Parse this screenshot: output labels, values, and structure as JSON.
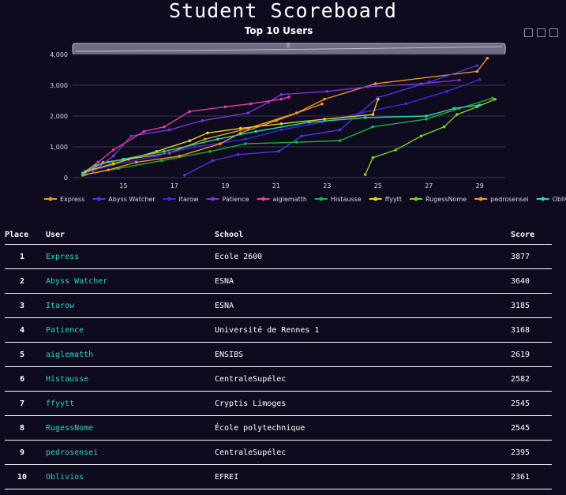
{
  "page": {
    "title": "Student Scoreboard"
  },
  "chart_data": {
    "type": "line",
    "title": "Top 10 Users",
    "xlabel": "",
    "ylabel": "",
    "xlim": [
      13.0,
      30.0
    ],
    "ylim": [
      0,
      4000
    ],
    "x_ticks": [
      15,
      17,
      19,
      21,
      23,
      25,
      27,
      29
    ],
    "y_ticks": [
      0,
      1000,
      2000,
      3000,
      4000
    ],
    "y_tick_labels": [
      "0",
      "1,000",
      "2,000",
      "3,000",
      "4,000"
    ],
    "grid": "horizontal",
    "legend": "bottom",
    "series": [
      {
        "name": "Express",
        "color": "#f0962a",
        "x": [
          13.4,
          14.2,
          15.2,
          16.8,
          18.2,
          19.9,
          21.8,
          22.9,
          24.9,
          28.9,
          29.3
        ],
        "y": [
          100,
          500,
          600,
          800,
          1250,
          1600,
          2100,
          2550,
          3050,
          3450,
          3877
        ]
      },
      {
        "name": "Abyss Watcher",
        "color": "#4a34e8",
        "x": [
          17.4,
          18.5,
          19.5,
          21.1,
          22.0,
          23.5,
          25.0,
          27.0,
          28.9
        ],
        "y": [
          80,
          550,
          750,
          850,
          1350,
          1550,
          2600,
          3100,
          3640
        ]
      },
      {
        "name": "Itarow",
        "color": "#3b2ae0",
        "x": [
          13.5,
          14.5,
          16.3,
          17.8,
          19.8,
          21.2,
          22.8,
          24.3,
          26.1,
          27.7,
          29.0
        ],
        "y": [
          150,
          400,
          700,
          1000,
          1250,
          1550,
          1800,
          2100,
          2400,
          2800,
          3185
        ]
      },
      {
        "name": "Patience",
        "color": "#7a35d9",
        "x": [
          13.8,
          14.6,
          15.3,
          16.8,
          18.1,
          19.9,
          20.7,
          21.2,
          23.0,
          24.6,
          26.7,
          28.2
        ],
        "y": [
          200,
          700,
          1350,
          1550,
          1850,
          2100,
          2450,
          2700,
          2800,
          2950,
          3050,
          3168
        ]
      },
      {
        "name": "aiglematth",
        "color": "#e63ca8",
        "x": [
          13.4,
          14.0,
          14.6,
          15.8,
          16.6,
          17.6,
          19.0,
          20.0,
          21.2,
          21.5
        ],
        "y": [
          150,
          500,
          900,
          1500,
          1650,
          2150,
          2300,
          2400,
          2550,
          2619
        ]
      },
      {
        "name": "Histausse",
        "color": "#22b034",
        "x": [
          13.5,
          14.8,
          16.5,
          18.4,
          19.8,
          21.8,
          23.5,
          24.8,
          26.9,
          28.2,
          29.5
        ],
        "y": [
          100,
          300,
          550,
          850,
          1100,
          1150,
          1200,
          1650,
          1900,
          2250,
          2582
        ]
      },
      {
        "name": "ffyytt",
        "color": "#e8d022",
        "x": [
          13.5,
          14.6,
          16.3,
          17.6,
          18.3,
          19.6,
          21.2,
          22.9,
          24.8,
          25.0
        ],
        "y": [
          200,
          450,
          850,
          1200,
          1450,
          1600,
          1750,
          1900,
          2050,
          2545
        ]
      },
      {
        "name": "RugessNome",
        "color": "#7ad022",
        "x": [
          24.5,
          24.8,
          25.7,
          26.7,
          27.6,
          28.1,
          28.9,
          29.6
        ],
        "y": [
          100,
          650,
          900,
          1350,
          1650,
          2050,
          2300,
          2545
        ]
      },
      {
        "name": "pedrosensei",
        "color": "#f0962a",
        "x": [
          13.4,
          14.4,
          15.5,
          17.2,
          18.8,
          19.6,
          21.0,
          22.8
        ],
        "y": [
          80,
          250,
          500,
          700,
          1100,
          1450,
          1850,
          2395
        ]
      },
      {
        "name": "Oblivios",
        "color": "#28d6b0",
        "x": [
          13.4,
          13.9,
          15.0,
          16.6,
          18.7,
          20.2,
          22.3,
          24.5,
          26.9,
          28.0,
          29.0
        ],
        "y": [
          150,
          400,
          600,
          850,
          1250,
          1500,
          1800,
          1950,
          2000,
          2250,
          2361
        ]
      }
    ]
  },
  "toolbar": {
    "icons": [
      "zoom-icon",
      "autoscale-icon",
      "download-icon"
    ]
  },
  "table": {
    "headers": {
      "place": "Place",
      "user": "User",
      "school": "School",
      "score": "Score"
    },
    "rows": [
      {
        "place": "1",
        "user": "Express",
        "school": "Ecole 2600",
        "score": "3877"
      },
      {
        "place": "2",
        "user": "Abyss Watcher",
        "school": "ESNA",
        "score": "3640"
      },
      {
        "place": "3",
        "user": "Itarow",
        "school": "ESNA",
        "score": "3185"
      },
      {
        "place": "4",
        "user": "Patience",
        "school": "Université de Rennes 1",
        "score": "3168"
      },
      {
        "place": "5",
        "user": "aiglematth",
        "school": "ENSIBS",
        "score": "2619"
      },
      {
        "place": "6",
        "user": "Histausse",
        "school": "CentraleSupélec",
        "score": "2582"
      },
      {
        "place": "7",
        "user": "ffyytt",
        "school": "Cryptis Limoges",
        "score": "2545"
      },
      {
        "place": "8",
        "user": "RugessNome",
        "school": "École polytechnique",
        "score": "2545"
      },
      {
        "place": "9",
        "user": "pedrosensei",
        "school": "CentraleSupélec",
        "score": "2395"
      },
      {
        "place": "10",
        "user": "Oblivios",
        "school": "EFREI",
        "score": "2361"
      }
    ]
  }
}
